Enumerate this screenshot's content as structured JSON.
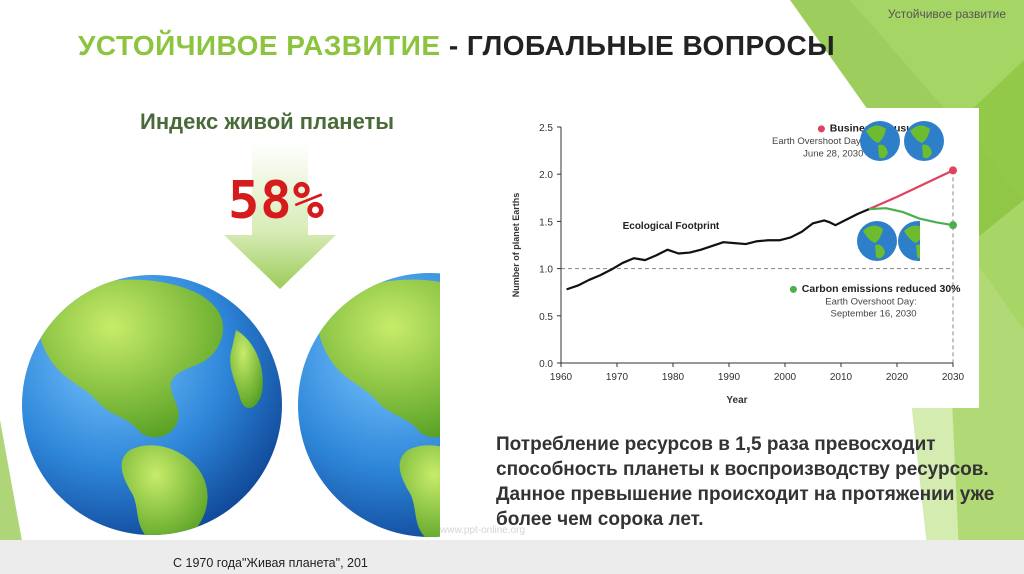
{
  "slide_label": "Устойчивое развитие",
  "title": {
    "part1": "УСТОЙЧИВОЕ РАЗВИТИЕ",
    "part2": " - ГЛОБАЛЬНЫЕ ВОПРОСЫ"
  },
  "index_title": "Индекс живой планеты",
  "index_value": "58%",
  "description": "Потребление ресурсов в 1,5 раза превосходит способность планеты к воспроизводству ресурсов. Данное превышение происходит на протяжении уже более чем сорока лет.",
  "watermark": "www.ppt-online.org",
  "caption": "С 1970 года\"Живая планета\", 201",
  "colors": {
    "accent_green": "#8cc43f",
    "dark_title": "#222222",
    "percent_red": "#d51b1b",
    "business_line": "#e0415c",
    "carbon_line": "#4cae4c"
  },
  "chart_data": {
    "type": "line",
    "xlabel": "Year",
    "ylabel": "Number of planet Earths",
    "xlim": [
      1960,
      2030
    ],
    "ylim": [
      0,
      2.5
    ],
    "x_ticks": [
      "1960",
      "1970",
      "1980",
      "1990",
      "2000",
      "2010",
      "2020",
      "2030"
    ],
    "y_ticks": [
      "0.0",
      "0.5",
      "1.0",
      "1.5",
      "2.0",
      "2.5"
    ],
    "reference_line": 1.0,
    "series": [
      {
        "name": "Ecological Footprint",
        "color": "#111111",
        "x": [
          1961,
          1963,
          1965,
          1967,
          1969,
          1971,
          1973,
          1975,
          1977,
          1979,
          1981,
          1983,
          1985,
          1987,
          1989,
          1991,
          1993,
          1995,
          1997,
          1999,
          2001,
          2003,
          2005,
          2007,
          2008,
          2009,
          2011,
          2013,
          2015
        ],
        "values": [
          0.78,
          0.82,
          0.88,
          0.93,
          0.99,
          1.06,
          1.11,
          1.09,
          1.14,
          1.2,
          1.16,
          1.17,
          1.2,
          1.24,
          1.28,
          1.27,
          1.26,
          1.29,
          1.3,
          1.3,
          1.33,
          1.39,
          1.48,
          1.51,
          1.49,
          1.46,
          1.52,
          1.58,
          1.63
        ]
      },
      {
        "name": "Business as usual",
        "color": "#e0415c",
        "x": [
          2015,
          2020,
          2025,
          2030
        ],
        "values": [
          1.63,
          1.76,
          1.9,
          2.04
        ]
      },
      {
        "name": "Carbon emissions reduced 30%",
        "color": "#4cae4c",
        "x": [
          2015,
          2018,
          2021,
          2024,
          2027,
          2030
        ],
        "values": [
          1.63,
          1.64,
          1.6,
          1.53,
          1.49,
          1.46
        ]
      }
    ],
    "annotations": {
      "ecological_footprint": "Ecological Footprint",
      "business": {
        "title": "Business as usual",
        "line1": "Earth Overshoot Day:",
        "line2": "June 28, 2030"
      },
      "carbon": {
        "title": "Carbon emissions reduced 30%",
        "line1": "Earth Overshoot Day:",
        "line2": "September 16, 2030"
      }
    }
  }
}
